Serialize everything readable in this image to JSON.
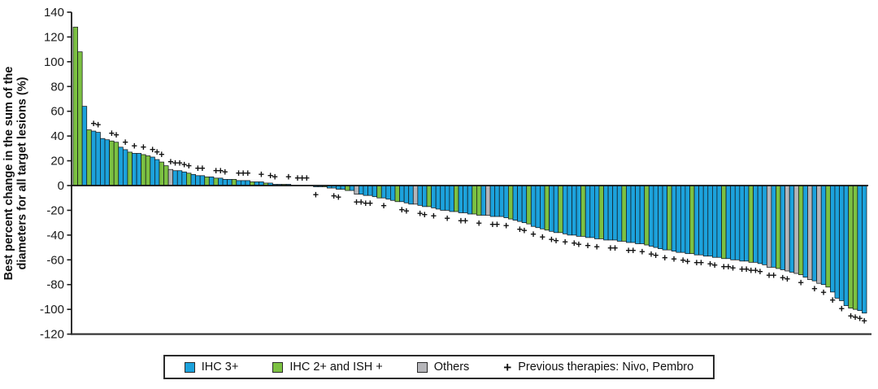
{
  "chart_data": {
    "type": "bar",
    "subtype": "waterfall",
    "title": "",
    "xlabel": "",
    "ylabel": "Best percent change in the sum of the diameters for all target lesions (%)",
    "ylabel_lines": [
      "Best percent change in the sum of the",
      "diameters for all target lesions (%)"
    ],
    "ylim": [
      -120,
      140
    ],
    "yticks": [
      140,
      120,
      100,
      80,
      60,
      40,
      20,
      0,
      -20,
      -40,
      -60,
      -80,
      -100,
      -120
    ],
    "grid": false,
    "legend_position": "bottom",
    "axis_color": "#1a1a1a",
    "bar_outline": "#15191d",
    "series_colors": {
      "b": "#1CA2DC",
      "g": "#7CC142",
      "o": "#B5B5B9"
    },
    "legend": {
      "items": [
        {
          "key": "b",
          "label": "IHC 3+",
          "color": "#1CA2DC"
        },
        {
          "key": "g",
          "label": "IHC 2+ and ISH +",
          "color": "#7CC142"
        },
        {
          "key": "o",
          "label": "Others",
          "color": "#B5B5B9"
        }
      ],
      "marker_symbol": "+",
      "marker_label": "Previous therapies: Nivo, Pembro"
    },
    "bars": [
      [
        128,
        "g",
        0
      ],
      [
        108,
        "g",
        0
      ],
      [
        64,
        "b",
        0
      ],
      [
        45,
        "g",
        0
      ],
      [
        44,
        "b",
        1
      ],
      [
        43,
        "b",
        1
      ],
      [
        38,
        "b",
        0
      ],
      [
        37,
        "b",
        0
      ],
      [
        36,
        "g",
        1
      ],
      [
        35,
        "g",
        1
      ],
      [
        31,
        "b",
        0
      ],
      [
        29,
        "b",
        1
      ],
      [
        27,
        "g",
        0
      ],
      [
        26,
        "b",
        1
      ],
      [
        26,
        "b",
        0
      ],
      [
        25,
        "g",
        1
      ],
      [
        24,
        "g",
        0
      ],
      [
        23,
        "b",
        1
      ],
      [
        21,
        "b",
        1
      ],
      [
        19,
        "g",
        1
      ],
      [
        16,
        "g",
        0
      ],
      [
        13,
        "o",
        1
      ],
      [
        12,
        "b",
        1
      ],
      [
        12,
        "b",
        1
      ],
      [
        11,
        "b",
        1
      ],
      [
        10,
        "g",
        1
      ],
      [
        9,
        "b",
        0
      ],
      [
        8,
        "b",
        1
      ],
      [
        8,
        "b",
        1
      ],
      [
        7,
        "g",
        0
      ],
      [
        7,
        "b",
        0
      ],
      [
        6,
        "g",
        1
      ],
      [
        6,
        "b",
        1
      ],
      [
        5,
        "b",
        1
      ],
      [
        5,
        "b",
        0
      ],
      [
        5,
        "g",
        0
      ],
      [
        4,
        "b",
        1
      ],
      [
        4,
        "b",
        1
      ],
      [
        4,
        "b",
        1
      ],
      [
        3,
        "g",
        0
      ],
      [
        3,
        "b",
        0
      ],
      [
        3,
        "b",
        1
      ],
      [
        2,
        "g",
        0
      ],
      [
        2,
        "b",
        1
      ],
      [
        1,
        "b",
        1
      ],
      [
        1,
        "b",
        0
      ],
      [
        1,
        "g",
        0
      ],
      [
        1,
        "b",
        1
      ],
      [
        0,
        "b",
        0
      ],
      [
        0,
        "b",
        1
      ],
      [
        0,
        "g",
        1
      ],
      [
        0,
        "b",
        1
      ],
      [
        0,
        "b",
        0
      ],
      [
        -1,
        "b",
        1
      ],
      [
        -1,
        "b",
        0
      ],
      [
        -1,
        "g",
        0
      ],
      [
        -2,
        "b",
        0
      ],
      [
        -2,
        "b",
        1
      ],
      [
        -3,
        "b",
        1
      ],
      [
        -3,
        "b",
        0
      ],
      [
        -4,
        "g",
        0
      ],
      [
        -4,
        "b",
        0
      ],
      [
        -7,
        "o",
        1
      ],
      [
        -7,
        "b",
        1
      ],
      [
        -8,
        "b",
        1
      ],
      [
        -8,
        "b",
        1
      ],
      [
        -9,
        "b",
        0
      ],
      [
        -10,
        "g",
        0
      ],
      [
        -10,
        "b",
        1
      ],
      [
        -11,
        "b",
        0
      ],
      [
        -12,
        "b",
        0
      ],
      [
        -13,
        "g",
        0
      ],
      [
        -13,
        "b",
        1
      ],
      [
        -14,
        "b",
        1
      ],
      [
        -15,
        "b",
        0
      ],
      [
        -15,
        "o",
        0
      ],
      [
        -16,
        "b",
        1
      ],
      [
        -17,
        "b",
        1
      ],
      [
        -17,
        "g",
        0
      ],
      [
        -18,
        "b",
        1
      ],
      [
        -19,
        "b",
        0
      ],
      [
        -20,
        "b",
        0
      ],
      [
        -20,
        "b",
        1
      ],
      [
        -21,
        "b",
        0
      ],
      [
        -21,
        "g",
        0
      ],
      [
        -22,
        "b",
        1
      ],
      [
        -22,
        "b",
        1
      ],
      [
        -23,
        "b",
        0
      ],
      [
        -23,
        "g",
        0
      ],
      [
        -24,
        "g",
        1
      ],
      [
        -24,
        "b",
        0
      ],
      [
        -24,
        "o",
        0
      ],
      [
        -25,
        "b",
        1
      ],
      [
        -25,
        "b",
        1
      ],
      [
        -25,
        "b",
        0
      ],
      [
        -26,
        "b",
        1
      ],
      [
        -27,
        "g",
        0
      ],
      [
        -28,
        "b",
        0
      ],
      [
        -29,
        "b",
        1
      ],
      [
        -30,
        "b",
        1
      ],
      [
        -31,
        "g",
        0
      ],
      [
        -33,
        "b",
        1
      ],
      [
        -34,
        "b",
        0
      ],
      [
        -35,
        "b",
        1
      ],
      [
        -36,
        "g",
        0
      ],
      [
        -37,
        "b",
        1
      ],
      [
        -38,
        "b",
        1
      ],
      [
        -38,
        "g",
        0
      ],
      [
        -39,
        "b",
        1
      ],
      [
        -40,
        "b",
        0
      ],
      [
        -40,
        "b",
        1
      ],
      [
        -41,
        "b",
        1
      ],
      [
        -41,
        "g",
        0
      ],
      [
        -42,
        "b",
        1
      ],
      [
        -42,
        "b",
        0
      ],
      [
        -43,
        "b",
        1
      ],
      [
        -43,
        "g",
        0
      ],
      [
        -44,
        "b",
        0
      ],
      [
        -44,
        "b",
        1
      ],
      [
        -44,
        "b",
        1
      ],
      [
        -45,
        "b",
        0
      ],
      [
        -45,
        "g",
        0
      ],
      [
        -46,
        "b",
        1
      ],
      [
        -46,
        "b",
        1
      ],
      [
        -47,
        "b",
        0
      ],
      [
        -47,
        "b",
        1
      ],
      [
        -48,
        "g",
        0
      ],
      [
        -49,
        "b",
        1
      ],
      [
        -50,
        "b",
        1
      ],
      [
        -51,
        "b",
        0
      ],
      [
        -52,
        "b",
        1
      ],
      [
        -52,
        "g",
        0
      ],
      [
        -53,
        "b",
        1
      ],
      [
        -54,
        "b",
        0
      ],
      [
        -54,
        "b",
        1
      ],
      [
        -55,
        "b",
        1
      ],
      [
        -55,
        "g",
        0
      ],
      [
        -56,
        "b",
        1
      ],
      [
        -56,
        "b",
        1
      ],
      [
        -57,
        "b",
        0
      ],
      [
        -57,
        "b",
        1
      ],
      [
        -58,
        "b",
        1
      ],
      [
        -58,
        "b",
        0
      ],
      [
        -59,
        "g",
        1
      ],
      [
        -59,
        "b",
        1
      ],
      [
        -60,
        "b",
        1
      ],
      [
        -60,
        "b",
        0
      ],
      [
        -61,
        "b",
        1
      ],
      [
        -61,
        "b",
        1
      ],
      [
        -62,
        "g",
        1
      ],
      [
        -62,
        "b",
        1
      ],
      [
        -63,
        "b",
        1
      ],
      [
        -64,
        "b",
        0
      ],
      [
        -66,
        "o",
        1
      ],
      [
        -66,
        "b",
        1
      ],
      [
        -67,
        "g",
        0
      ],
      [
        -68,
        "b",
        1
      ],
      [
        -69,
        "o",
        1
      ],
      [
        -70,
        "b",
        0
      ],
      [
        -71,
        "o",
        0
      ],
      [
        -72,
        "g",
        1
      ],
      [
        -74,
        "b",
        0
      ],
      [
        -76,
        "o",
        0
      ],
      [
        -77,
        "b",
        1
      ],
      [
        -79,
        "o",
        0
      ],
      [
        -80,
        "b",
        1
      ],
      [
        -82,
        "g",
        0
      ],
      [
        -86,
        "b",
        1
      ],
      [
        -91,
        "b",
        0
      ],
      [
        -93,
        "b",
        1
      ],
      [
        -97,
        "b",
        0
      ],
      [
        -99,
        "g",
        1
      ],
      [
        -100,
        "g",
        1
      ],
      [
        -101,
        "b",
        1
      ],
      [
        -103,
        "b",
        1
      ]
    ]
  }
}
